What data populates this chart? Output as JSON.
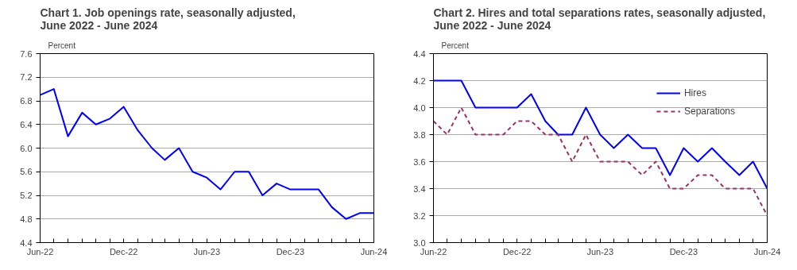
{
  "chart_data": [
    {
      "type": "line",
      "title": "Chart 1. Job openings rate, seasonally adjusted,\nJune 2022 - June 2024",
      "ylabel": "Percent",
      "x": [
        "2022-06",
        "2022-07",
        "2022-08",
        "2022-09",
        "2022-10",
        "2022-11",
        "2022-12",
        "2023-01",
        "2023-02",
        "2023-03",
        "2023-04",
        "2023-05",
        "2023-06",
        "2023-07",
        "2023-08",
        "2023-09",
        "2023-10",
        "2023-11",
        "2023-12",
        "2024-01",
        "2024-02",
        "2024-03",
        "2024-04",
        "2024-05",
        "2024-06"
      ],
      "series": [
        {
          "color": "#0000ff",
          "values": [
            6.9,
            7.0,
            6.2,
            6.6,
            6.4,
            6.5,
            6.7,
            6.3,
            6.0,
            5.8,
            6.0,
            5.6,
            5.5,
            5.3,
            5.6,
            5.6,
            5.2,
            5.4,
            5.3,
            5.3,
            5.3,
            5.0,
            4.8,
            4.9,
            4.9
          ]
        }
      ],
      "xlim": [
        "2022-06",
        "2024-06"
      ],
      "xticks": [
        {
          "value": "2022-06",
          "label": "Jun-22"
        },
        {
          "value": "2022-07",
          "label": null
        },
        {
          "value": "2022-08",
          "label": null
        },
        {
          "value": "2022-09",
          "label": null
        },
        {
          "value": "2022-10",
          "label": null
        },
        {
          "value": "2022-11",
          "label": null
        },
        {
          "value": "2022-12",
          "label": "Dec-22"
        },
        {
          "value": "2023-01",
          "label": null
        },
        {
          "value": "2023-02",
          "label": null
        },
        {
          "value": "2023-03",
          "label": null
        },
        {
          "value": "2023-04",
          "label": null
        },
        {
          "value": "2023-05",
          "label": null
        },
        {
          "value": "2023-06",
          "label": "Jun-23"
        },
        {
          "value": "2023-07",
          "label": null
        },
        {
          "value": "2023-08",
          "label": null
        },
        {
          "value": "2023-09",
          "label": null
        },
        {
          "value": "2023-10",
          "label": null
        },
        {
          "value": "2023-11",
          "label": null
        },
        {
          "value": "2023-12",
          "label": "Dec-23"
        },
        {
          "value": "2024-01",
          "label": null
        },
        {
          "value": "2024-02",
          "label": null
        },
        {
          "value": "2024-03",
          "label": null
        },
        {
          "value": "2024-04",
          "label": null
        },
        {
          "value": "2024-05",
          "label": null
        },
        {
          "value": "2024-06",
          "label": "Jun-24"
        }
      ],
      "ylim": [
        4.4,
        7.6
      ],
      "yticks": [
        4.4,
        4.8,
        5.2,
        5.6,
        {
          "value": 6,
          "label": "6.0"
        },
        6.4,
        6.8,
        7.2,
        7.6
      ],
      "grid": "y",
      "legend": false,
      "line_style": "solid",
      "marker": "none"
    },
    {
      "type": "line",
      "title": "Chart 2. Hires and total separations rates, seasonally adjusted,\nJune 2022 - June 2024",
      "ylabel": "Percent",
      "x": [
        "2022-06",
        "2022-07",
        "2022-08",
        "2022-09",
        "2022-10",
        "2022-11",
        "2022-12",
        "2023-01",
        "2023-02",
        "2023-03",
        "2023-04",
        "2023-05",
        "2023-06",
        "2023-07",
        "2023-08",
        "2023-09",
        "2023-10",
        "2023-11",
        "2023-12",
        "2024-01",
        "2024-02",
        "2024-03",
        "2024-04",
        "2024-05",
        "2024-06"
      ],
      "series": [
        {
          "name": "Hires",
          "color": "#0000ff",
          "line_style": "solid",
          "values": [
            4.2,
            4.2,
            4.2,
            4.0,
            4.0,
            4.0,
            4.0,
            4.1,
            3.9,
            3.8,
            3.8,
            4.0,
            3.8,
            3.7,
            3.8,
            3.7,
            3.7,
            3.5,
            3.7,
            3.6,
            3.7,
            3.6,
            3.5,
            3.6,
            3.4
          ]
        },
        {
          "name": "Separations",
          "color": "#993366",
          "line_style": "dashed",
          "values": [
            3.9,
            3.8,
            4.0,
            3.8,
            3.8,
            3.8,
            3.9,
            3.9,
            3.8,
            3.8,
            3.6,
            3.8,
            3.6,
            3.6,
            3.6,
            3.5,
            3.6,
            3.4,
            3.4,
            3.5,
            3.5,
            3.4,
            3.4,
            3.4,
            3.2
          ]
        }
      ],
      "xlim": [
        "2022-06",
        "2024-06"
      ],
      "xticks": [
        {
          "value": "2022-06",
          "label": "Jun-22"
        },
        {
          "value": "2022-07",
          "label": null
        },
        {
          "value": "2022-08",
          "label": null
        },
        {
          "value": "2022-09",
          "label": null
        },
        {
          "value": "2022-10",
          "label": null
        },
        {
          "value": "2022-11",
          "label": null
        },
        {
          "value": "2022-12",
          "label": "Dec-22"
        },
        {
          "value": "2023-01",
          "label": null
        },
        {
          "value": "2023-02",
          "label": null
        },
        {
          "value": "2023-03",
          "label": null
        },
        {
          "value": "2023-04",
          "label": null
        },
        {
          "value": "2023-05",
          "label": null
        },
        {
          "value": "2023-06",
          "label": "Jun-23"
        },
        {
          "value": "2023-07",
          "label": null
        },
        {
          "value": "2023-08",
          "label": null
        },
        {
          "value": "2023-09",
          "label": null
        },
        {
          "value": "2023-10",
          "label": null
        },
        {
          "value": "2023-11",
          "label": null
        },
        {
          "value": "2023-12",
          "label": "Dec-23"
        },
        {
          "value": "2024-01",
          "label": null
        },
        {
          "value": "2024-02",
          "label": null
        },
        {
          "value": "2024-03",
          "label": null
        },
        {
          "value": "2024-04",
          "label": null
        },
        {
          "value": "2024-05",
          "label": null
        },
        {
          "value": "2024-06",
          "label": "Jun-24"
        }
      ],
      "ylim": [
        3.0,
        4.4
      ],
      "yticks": [
        {
          "value": 3,
          "label": "3.0"
        },
        3.2,
        3.4,
        3.6,
        3.8,
        {
          "value": 4,
          "label": "4.0"
        },
        4.2,
        4.4
      ],
      "grid": "y",
      "legend": "top right",
      "marker": "none"
    }
  ]
}
